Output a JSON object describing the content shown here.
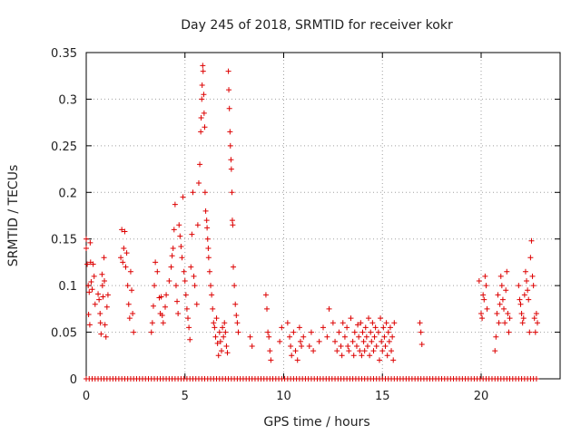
{
  "chart_data": {
    "type": "scatter",
    "title": "Day 245 of 2018, SRMTID for receiver kokr",
    "xlabel": "GPS time / hours",
    "ylabel": "SRMTID / TECUs",
    "xlim": [
      0,
      24
    ],
    "ylim": [
      0,
      0.35
    ],
    "xticks": [
      0,
      5,
      10,
      15,
      20
    ],
    "yticks": [
      0,
      0.05,
      0.1,
      0.15,
      0.2,
      0.25,
      0.3,
      0.35
    ],
    "ytick_labels": [
      "0",
      "0.05",
      "0.1",
      "0.15",
      "0.2",
      "0.25",
      "0.3",
      "0.35"
    ],
    "grid": true,
    "marker": "+",
    "color": "#dd0000",
    "series": [
      {
        "name": "SRMTID",
        "points": [
          [
            0.0,
            0.15
          ],
          [
            0.0,
            0.14
          ],
          [
            0.05,
            0.123
          ],
          [
            0.1,
            0.1
          ],
          [
            0.12,
            0.069
          ],
          [
            0.15,
            0.093
          ],
          [
            0.18,
            0.058
          ],
          [
            0.2,
            0.146
          ],
          [
            0.22,
            0.125
          ],
          [
            0.25,
            0.104
          ],
          [
            0.3,
            0.096
          ],
          [
            0.35,
            0.123
          ],
          [
            0.4,
            0.11
          ],
          [
            0.45,
            0.08
          ],
          [
            0.6,
            0.091
          ],
          [
            0.65,
            0.085
          ],
          [
            0.7,
            0.07
          ],
          [
            0.72,
            0.06
          ],
          [
            0.75,
            0.048
          ],
          [
            0.8,
            0.112
          ],
          [
            0.82,
            0.1
          ],
          [
            0.85,
            0.088
          ],
          [
            0.9,
            0.13
          ],
          [
            0.92,
            0.105
          ],
          [
            0.95,
            0.058
          ],
          [
            1.0,
            0.045
          ],
          [
            1.05,
            0.077
          ],
          [
            1.1,
            0.09
          ],
          [
            1.75,
            0.13
          ],
          [
            1.8,
            0.16
          ],
          [
            1.85,
            0.125
          ],
          [
            1.9,
            0.14
          ],
          [
            1.95,
            0.158
          ],
          [
            2.0,
            0.12
          ],
          [
            2.05,
            0.135
          ],
          [
            2.1,
            0.1
          ],
          [
            2.15,
            0.08
          ],
          [
            2.2,
            0.065
          ],
          [
            2.25,
            0.115
          ],
          [
            2.3,
            0.095
          ],
          [
            2.35,
            0.07
          ],
          [
            2.4,
            0.05
          ],
          [
            3.3,
            0.05
          ],
          [
            3.35,
            0.06
          ],
          [
            3.4,
            0.078
          ],
          [
            3.45,
            0.1
          ],
          [
            3.5,
            0.125
          ],
          [
            3.6,
            0.115
          ],
          [
            3.7,
            0.087
          ],
          [
            3.75,
            0.07
          ],
          [
            3.8,
            0.088
          ],
          [
            3.85,
            0.068
          ],
          [
            3.9,
            0.06
          ],
          [
            4.0,
            0.077
          ],
          [
            4.05,
            0.09
          ],
          [
            4.2,
            0.105
          ],
          [
            4.3,
            0.12
          ],
          [
            4.35,
            0.132
          ],
          [
            4.4,
            0.14
          ],
          [
            4.45,
            0.16
          ],
          [
            4.5,
            0.187
          ],
          [
            4.55,
            0.1
          ],
          [
            4.6,
            0.083
          ],
          [
            4.65,
            0.07
          ],
          [
            4.7,
            0.165
          ],
          [
            4.75,
            0.153
          ],
          [
            4.8,
            0.142
          ],
          [
            4.85,
            0.13
          ],
          [
            4.9,
            0.195
          ],
          [
            4.95,
            0.115
          ],
          [
            5.0,
            0.105
          ],
          [
            5.05,
            0.09
          ],
          [
            5.1,
            0.075
          ],
          [
            5.15,
            0.065
          ],
          [
            5.2,
            0.055
          ],
          [
            5.25,
            0.042
          ],
          [
            5.3,
            0.12
          ],
          [
            5.35,
            0.155
          ],
          [
            5.4,
            0.2
          ],
          [
            5.45,
            0.11
          ],
          [
            5.5,
            0.1
          ],
          [
            5.6,
            0.08
          ],
          [
            5.65,
            0.165
          ],
          [
            5.7,
            0.21
          ],
          [
            5.75,
            0.23
          ],
          [
            5.8,
            0.265
          ],
          [
            5.82,
            0.28
          ],
          [
            5.85,
            0.3
          ],
          [
            5.87,
            0.315
          ],
          [
            5.9,
            0.336
          ],
          [
            5.92,
            0.33
          ],
          [
            5.95,
            0.305
          ],
          [
            5.97,
            0.285
          ],
          [
            6.0,
            0.27
          ],
          [
            6.02,
            0.2
          ],
          [
            6.05,
            0.18
          ],
          [
            6.1,
            0.17
          ],
          [
            6.12,
            0.162
          ],
          [
            6.15,
            0.15
          ],
          [
            6.18,
            0.14
          ],
          [
            6.2,
            0.13
          ],
          [
            6.25,
            0.115
          ],
          [
            6.3,
            0.1
          ],
          [
            6.35,
            0.09
          ],
          [
            6.4,
            0.075
          ],
          [
            6.45,
            0.06
          ],
          [
            6.5,
            0.055
          ],
          [
            6.55,
            0.045
          ],
          [
            6.6,
            0.065
          ],
          [
            6.65,
            0.038
          ],
          [
            6.7,
            0.025
          ],
          [
            6.75,
            0.05
          ],
          [
            6.8,
            0.04
          ],
          [
            6.85,
            0.03
          ],
          [
            6.9,
            0.055
          ],
          [
            6.95,
            0.045
          ],
          [
            7.0,
            0.06
          ],
          [
            7.05,
            0.05
          ],
          [
            7.1,
            0.035
          ],
          [
            7.15,
            0.028
          ],
          [
            7.2,
            0.33
          ],
          [
            7.22,
            0.31
          ],
          [
            7.25,
            0.29
          ],
          [
            7.28,
            0.265
          ],
          [
            7.3,
            0.25
          ],
          [
            7.33,
            0.235
          ],
          [
            7.35,
            0.225
          ],
          [
            7.38,
            0.2
          ],
          [
            7.4,
            0.17
          ],
          [
            7.42,
            0.165
          ],
          [
            7.45,
            0.12
          ],
          [
            7.5,
            0.1
          ],
          [
            7.55,
            0.08
          ],
          [
            7.6,
            0.068
          ],
          [
            7.65,
            0.06
          ],
          [
            7.7,
            0.05
          ],
          [
            8.3,
            0.045
          ],
          [
            8.4,
            0.035
          ],
          [
            9.1,
            0.09
          ],
          [
            9.15,
            0.075
          ],
          [
            9.2,
            0.05
          ],
          [
            9.25,
            0.045
          ],
          [
            9.3,
            0.03
          ],
          [
            9.35,
            0.02
          ],
          [
            9.8,
            0.04
          ],
          [
            9.9,
            0.055
          ],
          [
            10.2,
            0.06
          ],
          [
            10.3,
            0.045
          ],
          [
            10.35,
            0.035
          ],
          [
            10.4,
            0.025
          ],
          [
            10.5,
            0.05
          ],
          [
            10.6,
            0.03
          ],
          [
            10.7,
            0.02
          ],
          [
            10.8,
            0.055
          ],
          [
            10.85,
            0.04
          ],
          [
            10.9,
            0.035
          ],
          [
            11.0,
            0.045
          ],
          [
            11.3,
            0.035
          ],
          [
            11.4,
            0.05
          ],
          [
            11.5,
            0.03
          ],
          [
            11.8,
            0.04
          ],
          [
            12.0,
            0.055
          ],
          [
            12.2,
            0.045
          ],
          [
            12.3,
            0.075
          ],
          [
            12.5,
            0.06
          ],
          [
            12.6,
            0.04
          ],
          [
            12.7,
            0.03
          ],
          [
            12.8,
            0.05
          ],
          [
            12.9,
            0.035
          ],
          [
            12.95,
            0.025
          ],
          [
            13.0,
            0.06
          ],
          [
            13.1,
            0.045
          ],
          [
            13.2,
            0.055
          ],
          [
            13.25,
            0.035
          ],
          [
            13.3,
            0.03
          ],
          [
            13.4,
            0.065
          ],
          [
            13.5,
            0.04
          ],
          [
            13.55,
            0.025
          ],
          [
            13.6,
            0.05
          ],
          [
            13.7,
            0.035
          ],
          [
            13.75,
            0.058
          ],
          [
            13.8,
            0.045
          ],
          [
            13.85,
            0.03
          ],
          [
            13.9,
            0.06
          ],
          [
            13.95,
            0.025
          ],
          [
            14.0,
            0.05
          ],
          [
            14.05,
            0.04
          ],
          [
            14.1,
            0.03
          ],
          [
            14.15,
            0.055
          ],
          [
            14.2,
            0.045
          ],
          [
            14.25,
            0.035
          ],
          [
            14.3,
            0.065
          ],
          [
            14.35,
            0.025
          ],
          [
            14.4,
            0.05
          ],
          [
            14.45,
            0.04
          ],
          [
            14.5,
            0.06
          ],
          [
            14.55,
            0.03
          ],
          [
            14.6,
            0.045
          ],
          [
            14.65,
            0.055
          ],
          [
            14.7,
            0.035
          ],
          [
            14.8,
            0.05
          ],
          [
            14.85,
            0.02
          ],
          [
            14.9,
            0.065
          ],
          [
            14.95,
            0.04
          ],
          [
            15.0,
            0.03
          ],
          [
            15.05,
            0.055
          ],
          [
            15.1,
            0.045
          ],
          [
            15.15,
            0.035
          ],
          [
            15.2,
            0.06
          ],
          [
            15.25,
            0.025
          ],
          [
            15.3,
            0.05
          ],
          [
            15.35,
            0.04
          ],
          [
            15.4,
            0.055
          ],
          [
            15.45,
            0.03
          ],
          [
            15.5,
            0.045
          ],
          [
            15.55,
            0.02
          ],
          [
            15.6,
            0.06
          ],
          [
            16.9,
            0.06
          ],
          [
            16.95,
            0.05
          ],
          [
            17.0,
            0.037
          ],
          [
            19.9,
            0.105
          ],
          [
            20.0,
            0.07
          ],
          [
            20.05,
            0.065
          ],
          [
            20.1,
            0.09
          ],
          [
            20.15,
            0.085
          ],
          [
            20.2,
            0.11
          ],
          [
            20.25,
            0.1
          ],
          [
            20.3,
            0.075
          ],
          [
            20.7,
            0.03
          ],
          [
            20.75,
            0.045
          ],
          [
            20.8,
            0.07
          ],
          [
            20.85,
            0.09
          ],
          [
            20.9,
            0.06
          ],
          [
            20.95,
            0.08
          ],
          [
            21.0,
            0.11
          ],
          [
            21.05,
            0.1
          ],
          [
            21.1,
            0.085
          ],
          [
            21.15,
            0.075
          ],
          [
            21.2,
            0.06
          ],
          [
            21.25,
            0.095
          ],
          [
            21.3,
            0.115
          ],
          [
            21.35,
            0.07
          ],
          [
            21.4,
            0.05
          ],
          [
            21.45,
            0.065
          ],
          [
            21.9,
            0.1
          ],
          [
            21.95,
            0.085
          ],
          [
            22.0,
            0.08
          ],
          [
            22.05,
            0.07
          ],
          [
            22.1,
            0.06
          ],
          [
            22.15,
            0.065
          ],
          [
            22.2,
            0.09
          ],
          [
            22.25,
            0.115
          ],
          [
            22.3,
            0.105
          ],
          [
            22.35,
            0.095
          ],
          [
            22.4,
            0.085
          ],
          [
            22.45,
            0.05
          ],
          [
            22.5,
            0.13
          ],
          [
            22.55,
            0.148
          ],
          [
            22.6,
            0.11
          ],
          [
            22.65,
            0.1
          ],
          [
            22.7,
            0.065
          ],
          [
            22.75,
            0.05
          ],
          [
            22.8,
            0.07
          ],
          [
            22.85,
            0.06
          ]
        ],
        "zero_points": [
          0.0,
          0.15,
          0.3,
          0.45,
          0.6,
          0.75,
          0.9,
          1.05,
          1.2,
          1.35,
          1.5,
          1.65,
          1.8,
          1.95,
          2.1,
          2.25,
          2.4,
          2.55,
          2.7,
          2.85,
          3.0,
          3.15,
          3.3,
          3.45,
          3.6,
          3.75,
          3.9,
          4.05,
          4.2,
          4.35,
          4.5,
          4.65,
          4.8,
          4.95,
          5.1,
          5.25,
          5.4,
          5.55,
          5.7,
          5.85,
          6.0,
          6.15,
          6.3,
          6.45,
          6.6,
          6.75,
          6.9,
          7.05,
          7.2,
          7.35,
          7.5,
          7.65,
          7.8,
          7.95,
          8.1,
          8.25,
          8.4,
          8.55,
          8.7,
          8.85,
          9.0,
          9.15,
          9.3,
          9.45,
          9.6,
          9.75,
          9.9,
          10.05,
          10.2,
          10.35,
          10.5,
          10.65,
          10.8,
          10.95,
          11.1,
          11.25,
          11.4,
          11.55,
          11.7,
          11.85,
          12.0,
          12.15,
          12.3,
          12.45,
          12.6,
          12.75,
          12.9,
          13.05,
          13.2,
          13.35,
          13.5,
          13.65,
          13.8,
          13.95,
          14.1,
          14.25,
          14.4,
          14.55,
          14.7,
          14.85,
          15.0,
          15.15,
          15.3,
          15.45,
          15.6,
          15.75,
          15.9,
          16.05,
          16.2,
          16.35,
          16.5,
          16.65,
          16.8,
          16.95,
          17.1,
          17.25,
          17.4,
          17.55,
          17.7,
          17.85,
          18.0,
          18.15,
          18.3,
          18.45,
          18.6,
          18.75,
          18.9,
          19.05,
          19.2,
          19.35,
          19.5,
          19.65,
          19.8,
          19.95,
          20.1,
          20.25,
          20.4,
          20.55,
          20.7,
          20.85,
          21.0,
          21.15,
          21.3,
          21.45,
          21.6,
          21.75,
          21.9,
          22.05,
          22.2,
          22.35,
          22.5,
          22.65,
          22.8
        ]
      }
    ]
  }
}
